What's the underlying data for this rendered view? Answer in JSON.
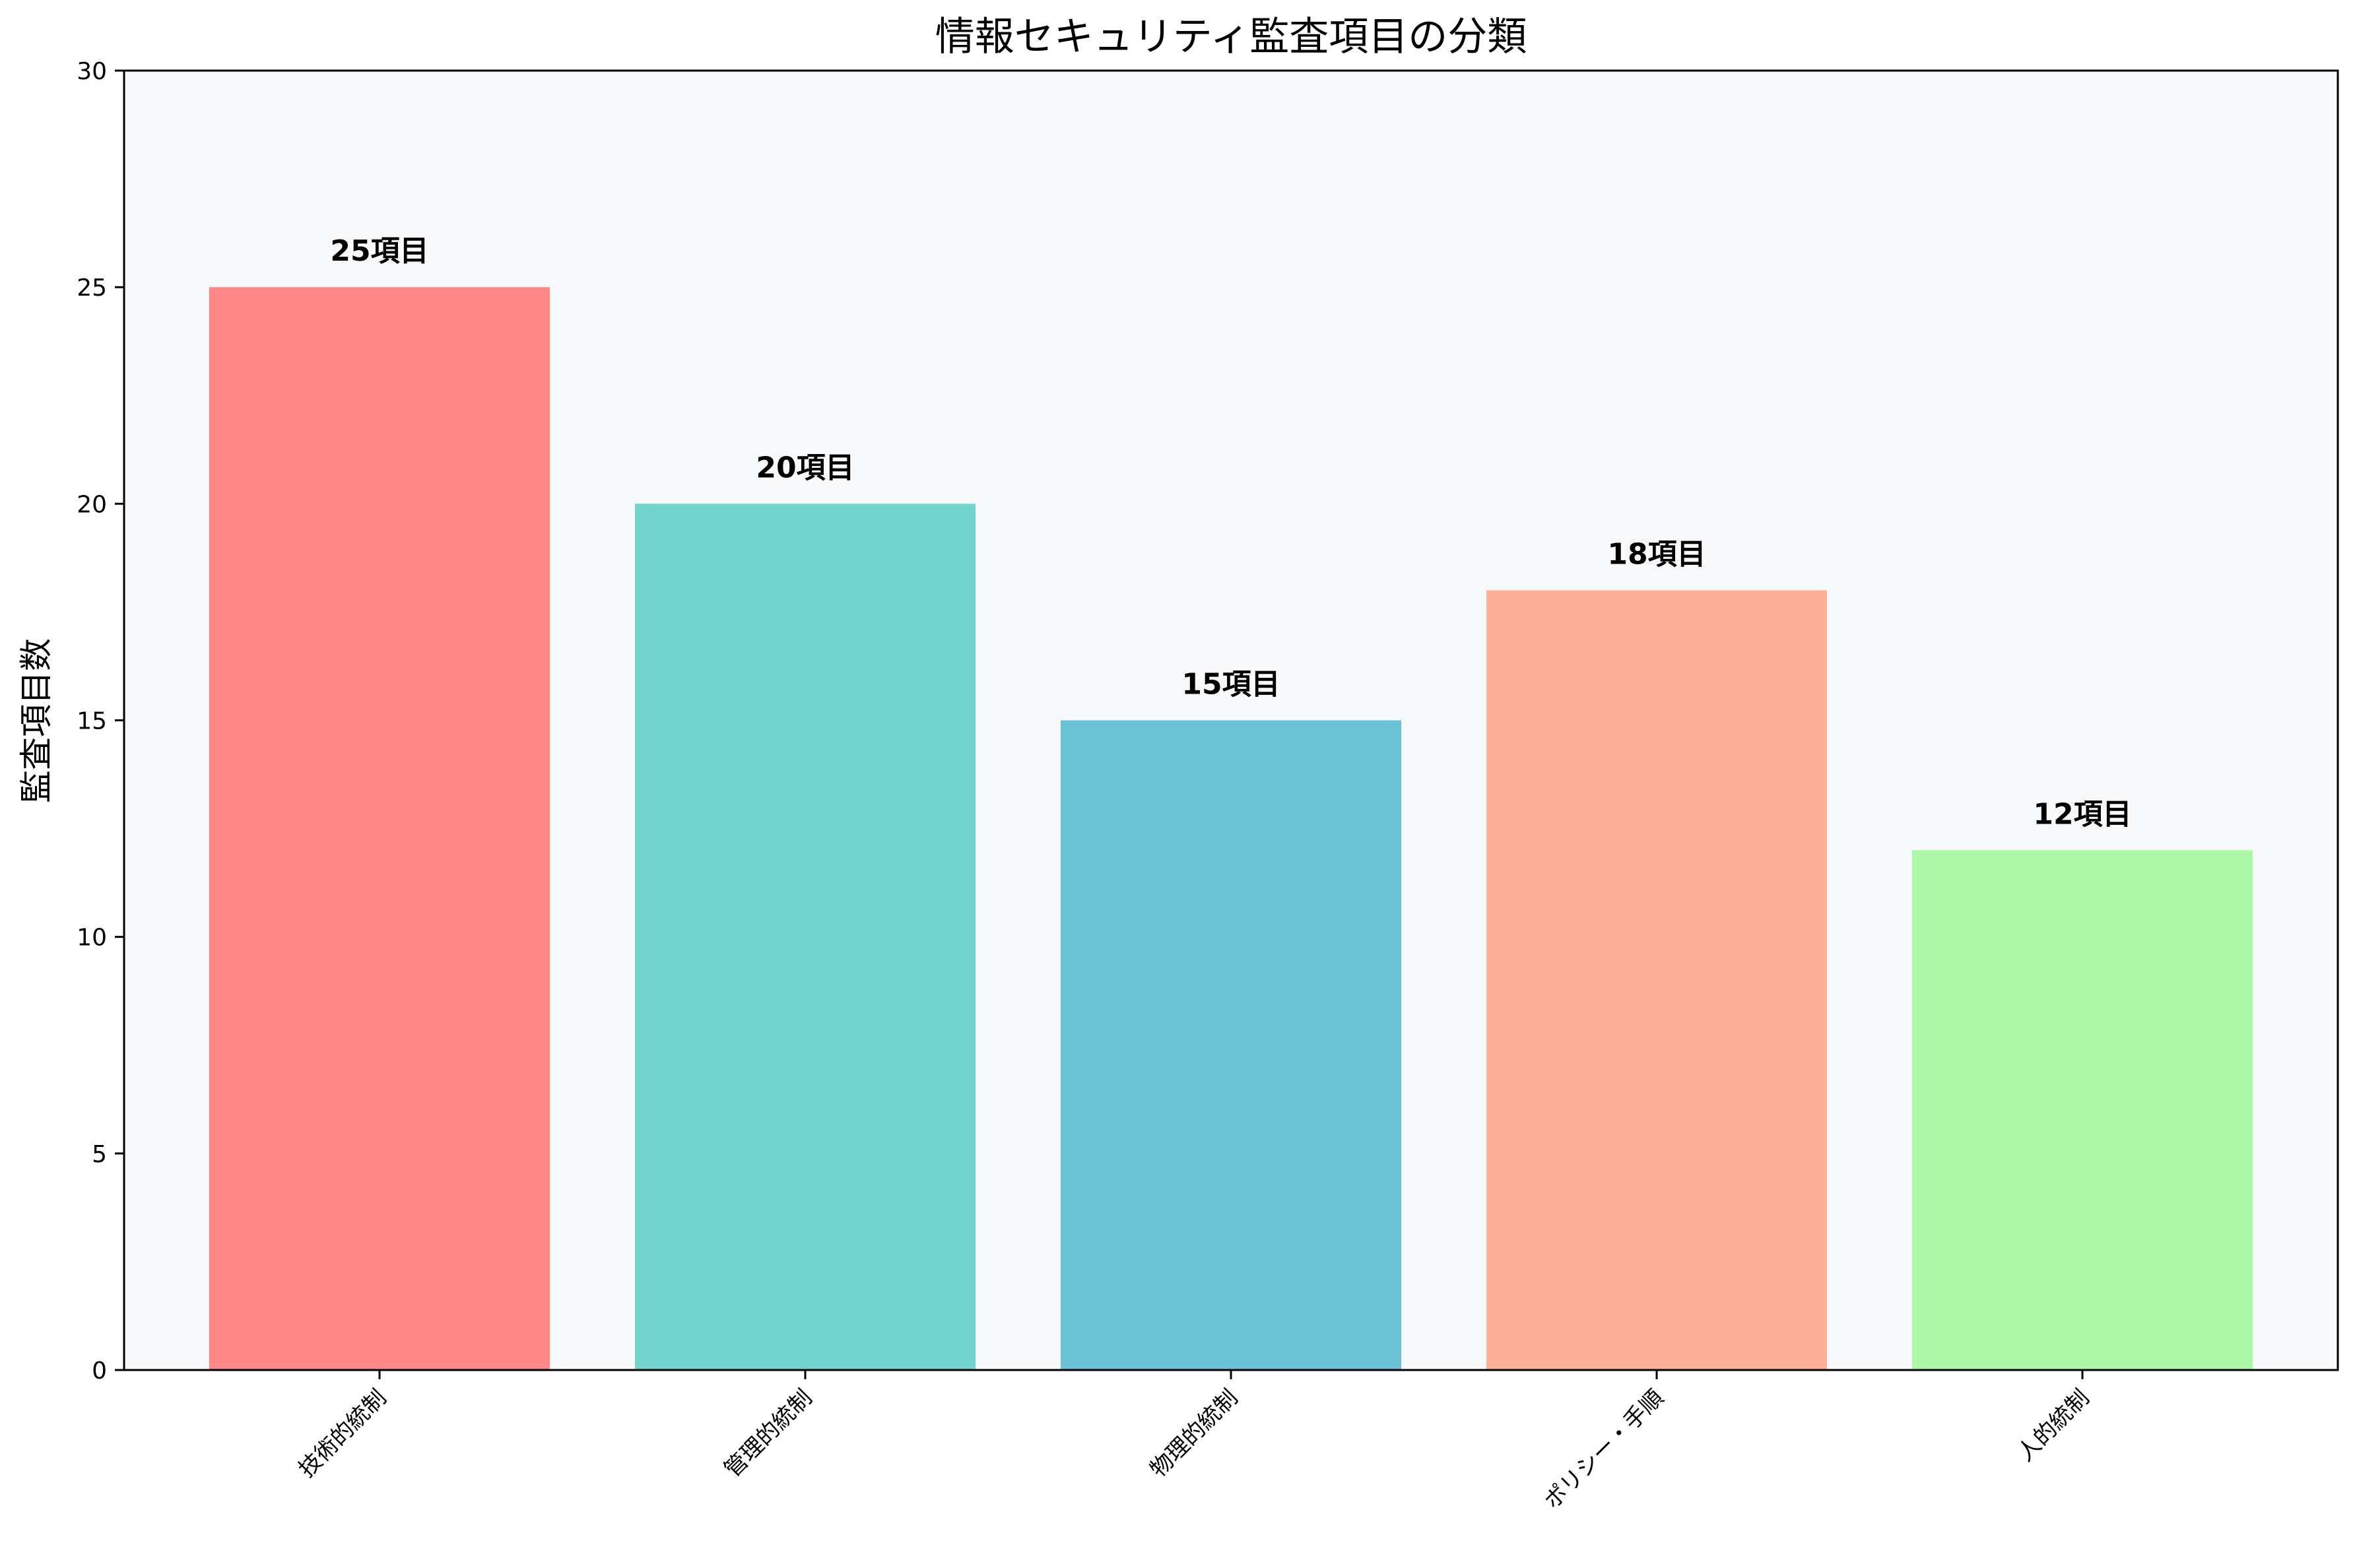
{
  "chart_data": {
    "type": "bar",
    "title": "情報セキュリティ監査項目の分類",
    "ylabel": "監査項目数",
    "xlabel": "",
    "ylim": [
      0,
      30
    ],
    "yticks": [
      0,
      5,
      10,
      15,
      20,
      25,
      30
    ],
    "categories": [
      "技術的統制",
      "管理的統制",
      "物理的統制",
      "ポリシー・手順",
      "人的統制"
    ],
    "values": [
      25,
      20,
      15,
      18,
      12
    ],
    "value_labels": [
      "25項目",
      "20項目",
      "15項目",
      "18項目",
      "12項目"
    ],
    "colors": [
      "#ff8787",
      "#73d4cd",
      "#6ac2d7",
      "#feb195",
      "#abf9a6"
    ],
    "background": "#f7f8fa",
    "grid": false,
    "x_tick_rotation_deg": 45
  }
}
